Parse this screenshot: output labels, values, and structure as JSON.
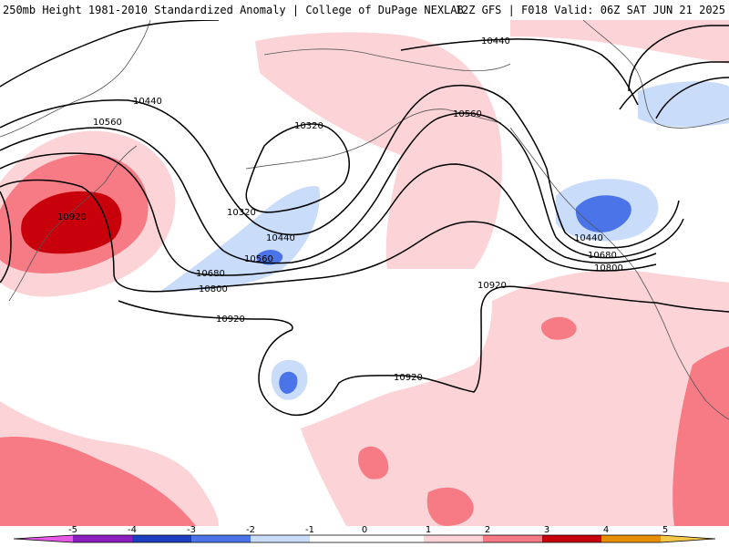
{
  "header": {
    "title": "250mb Height 1981-2010 Standardized Anomaly | College of DuPage NEXLAB",
    "run_info": "12Z GFS | F018 Valid: 06Z SAT JUN 21 2025"
  },
  "colors": {
    "anom_neg5": "#e65ae6",
    "anom_neg4": "#8b1fbf",
    "anom_neg3": "#1d3ec0",
    "anom_neg2": "#4a74e8",
    "anom_neg1": "#c9dcfa",
    "anom_0": "#ffffff",
    "anom_pos1": "#fcd3d6",
    "anom_pos2": "#f77b84",
    "anom_pos3": "#c8000b",
    "anom_pos4": "#e68f00",
    "anom_pos5": "#f5c84a",
    "coast": "#555555",
    "contour": "#000000"
  },
  "contour_labels": {
    "c10440_top": "10440",
    "c10440_west": "10440",
    "c10560_west": "10560",
    "c10560_ak": "10560",
    "c10320_top": "10320",
    "c10320_bottom": "10320",
    "c10440_mid": "10440",
    "c10560_mid": "10560",
    "c10680_west": "10680",
    "c10800_west": "10800",
    "c10920_west": "10920",
    "c10920_center": "10920",
    "c10920_east": "10920",
    "c10920_hawaii": "10920",
    "c10440_east": "10440",
    "c10680_east": "10680",
    "c10800_east": "10800"
  },
  "colorbar": {
    "ticks": [
      "-5",
      "-4",
      "-3",
      "-2",
      "-1",
      "0",
      "1",
      "2",
      "3",
      "4",
      "5"
    ]
  }
}
